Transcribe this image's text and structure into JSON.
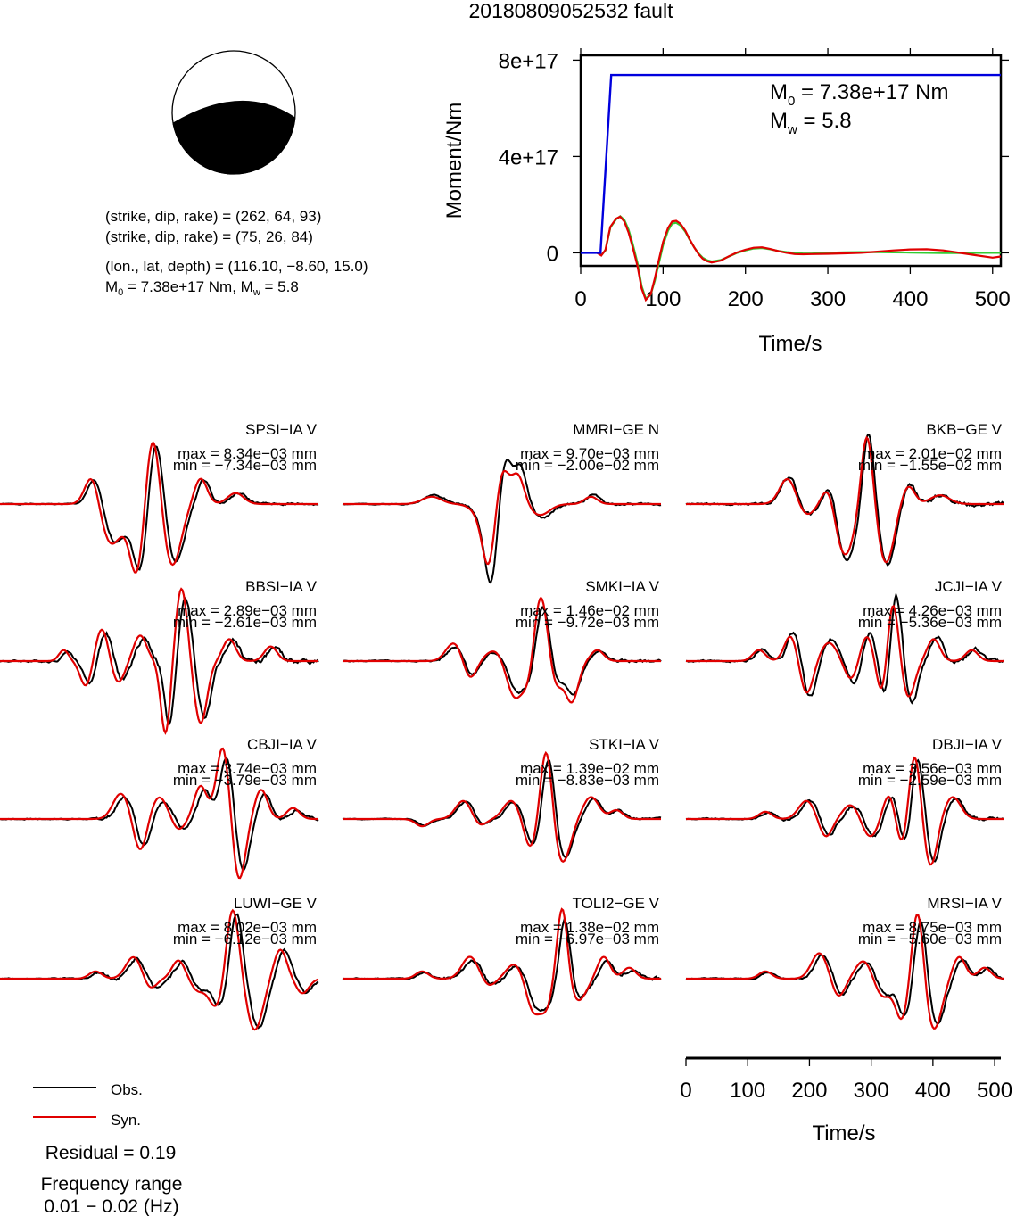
{
  "title": "20180809052532 fault",
  "colors": {
    "obs": "#000000",
    "syn": "#e00000",
    "moment": "#0000dd",
    "stf_green": "#33cc33",
    "beachball_fill": "#000000"
  },
  "info": {
    "line1": "(strike, dip, rake) = (262, 64, 93)",
    "line2": "(strike, dip, rake) = (75, 26, 84)",
    "line3": "(lon., lat, depth) = (116.10, −8.60, 15.0)",
    "m0_prefix": "M",
    "m0_sub": "0",
    "m0_rest": " = 7.38e+17 Nm, M",
    "mw_sub": "w",
    "mw_rest": " = 5.8"
  },
  "moment_annotation": {
    "m0_main": "M",
    "m0_sub": "0",
    "m0_value": " = 7.38e+17 Nm",
    "mw_main": "M",
    "mw_sub": "w",
    "mw_value": " = 5.8"
  },
  "chart_data": [
    {
      "type": "line",
      "name": "moment_function",
      "xlabel": "Time/s",
      "ylabel": "Moment/Nm",
      "xlim": [
        0,
        510
      ],
      "ylim": [
        -5.4e+16,
        8.2e+17
      ],
      "xticks": [
        0,
        100,
        200,
        300,
        400,
        500
      ],
      "yticks": [
        0,
        4e+17,
        8e+17
      ],
      "ytick_labels": [
        "0",
        "4e+17",
        "8e+17"
      ],
      "series": [
        {
          "color": "#0000dd",
          "x": [
            0,
            24,
            37,
            510
          ],
          "y": [
            0,
            0,
            7.38e+17,
            7.38e+17
          ]
        },
        {
          "color": "#33cc33",
          "x": [
            0,
            20,
            25,
            30,
            36,
            43,
            48,
            53,
            58,
            63,
            69,
            74,
            79,
            85,
            90,
            95,
            100,
            106,
            111,
            116,
            121,
            127,
            132,
            138,
            143,
            148,
            153,
            159,
            170,
            180,
            190,
            200,
            210,
            220,
            230,
            240,
            250,
            260,
            270,
            280,
            300,
            320,
            340,
            360,
            380,
            400,
            420,
            440,
            460,
            480,
            500,
            510
          ],
          "y": [
            0,
            0,
            -1e+16,
            1e+16,
            1.05e+17,
            1.39e+17,
            1.52e+17,
            1.37e+17,
            9.7e+16,
            3.9e+16,
            -4.2e+16,
            -1.38e+17,
            -1.9e+17,
            -1.73e+17,
            -1.16e+17,
            -4.2e+16,
            3.3e+16,
            9.2e+16,
            1.21e+17,
            1.25e+17,
            1.14e+17,
            8.8e+16,
            5.6e+16,
            2.2e+16,
            -2000000000000000.0,
            -2e+16,
            -3e+16,
            -3.6e+16,
            -3e+16,
            -1.5e+16,
            0,
            1e+16,
            1.8e+16,
            2e+16,
            1.5e+16,
            8000000000000000.0,
            3000000000000000.0,
            0,
            -3000000000000000.0,
            -3000000000000000.0,
            0,
            2000000000000000.0,
            3000000000000000.0,
            3000000000000000.0,
            2000000000000000.0,
            1000000000000000.0,
            0,
            -1000000000000000.0,
            -1000000000000000.0,
            0,
            0,
            0
          ]
        },
        {
          "color": "#e00000",
          "x": [
            0,
            20,
            25,
            30,
            36,
            43,
            48,
            53,
            58,
            63,
            69,
            74,
            79,
            85,
            90,
            95,
            100,
            106,
            111,
            116,
            121,
            127,
            132,
            138,
            143,
            148,
            153,
            159,
            170,
            180,
            190,
            200,
            210,
            220,
            230,
            240,
            250,
            260,
            270,
            280,
            300,
            320,
            340,
            360,
            380,
            400,
            420,
            440,
            460,
            480,
            500,
            510
          ],
          "y": [
            0,
            0,
            -1.1e+16,
            1.2e+16,
            1.08e+17,
            1.42e+17,
            1.5e+17,
            1.3e+17,
            8.5e+16,
            2.5e+16,
            -5.5e+16,
            -1.48e+17,
            -1.95e+17,
            -1.72e+17,
            -1.06e+17,
            -2.8e+16,
            4.6e+16,
            1.03e+17,
            1.3e+17,
            1.33e+17,
            1.21e+17,
            9.2e+16,
            5.8e+16,
            2.2e+16,
            -5000000000000000.0,
            -2.4e+16,
            -3.4e+16,
            -4e+16,
            -3.2e+16,
            -1.4e+16,
            2000000000000000.0,
            1.3e+16,
            2.1e+16,
            2.3e+16,
            1.6e+16,
            7000000000000000.0,
            0,
            -5000000000000000.0,
            -6000000000000000.0,
            -5000000000000000.0,
            -4000000000000000.0,
            -2000000000000000.0,
            0,
            5000000000000000.0,
            1e+16,
            1.4e+16,
            1.5e+16,
            1e+16,
            0,
            -1e+16,
            -2e+16,
            -1.5e+16
          ]
        }
      ]
    },
    {
      "type": "line",
      "name": "waveform_comparison",
      "xlabel": "Time/s",
      "xlim": [
        0,
        510
      ],
      "xticks": [
        0,
        100,
        200,
        300,
        400,
        500
      ],
      "legend": [
        {
          "label": "Obs.",
          "color": "#000000"
        },
        {
          "label": "Syn.",
          "color": "#e00000"
        }
      ],
      "residual": "Residual = 0.19",
      "freq_title": "Frequency range",
      "freq_value": "0.01 − 0.02 (Hz)",
      "stations": [
        {
          "name": "SPSI−IA V",
          "max": "max = 8.34e−03 mm",
          "min": "min = −7.34e−03 mm",
          "pulses": [
            [
              0.29,
              0.022,
              0.45
            ],
            [
              0.35,
              0.035,
              -0.55
            ],
            [
              0.43,
              0.022,
              -0.95
            ],
            [
              0.48,
              0.022,
              1.0
            ],
            [
              0.54,
              0.028,
              -0.85
            ],
            [
              0.63,
              0.02,
              0.35
            ],
            [
              0.74,
              0.025,
              0.15
            ]
          ],
          "shift": 0.01,
          "obs_gain": 0.95,
          "noise": 0.06,
          "seed": 1
        },
        {
          "name": "MMRI−GE N",
          "max": "max = 9.70e−03 mm",
          "min": "min = −2.00e−02 mm",
          "pulses": [
            [
              0.28,
              0.03,
              0.1
            ],
            [
              0.44,
              0.03,
              -0.15
            ],
            [
              0.46,
              0.02,
              -0.75
            ],
            [
              0.5,
              0.02,
              0.5
            ],
            [
              0.55,
              0.02,
              0.4
            ],
            [
              0.62,
              0.03,
              -0.15
            ],
            [
              0.78,
              0.02,
              0.1
            ]
          ],
          "shift": 0.008,
          "obs_gain": 1.3,
          "noise": 0.05,
          "seed": 2
        },
        {
          "name": "BKB−GE V",
          "max": "max = 2.01e−02 mm",
          "min": "min = −1.55e−02 mm",
          "pulses": [
            [
              0.32,
              0.025,
              0.35
            ],
            [
              0.38,
              0.025,
              -0.15
            ],
            [
              0.45,
              0.02,
              0.3
            ],
            [
              0.5,
              0.03,
              -0.7
            ],
            [
              0.57,
              0.018,
              1.0
            ],
            [
              0.63,
              0.025,
              -0.8
            ],
            [
              0.7,
              0.02,
              0.25
            ],
            [
              0.8,
              0.03,
              0.12
            ]
          ],
          "shift": 0.005,
          "obs_gain": 1.05,
          "noise": 0.1,
          "seed": 3
        },
        {
          "name": "BBSI−IA V",
          "max": "max = 2.89e−03 mm",
          "min": "min = −2.61e−03 mm",
          "pulses": [
            [
              0.2,
              0.015,
              0.15
            ],
            [
              0.27,
              0.018,
              -0.35
            ],
            [
              0.32,
              0.02,
              0.45
            ],
            [
              0.37,
              0.02,
              -0.3
            ],
            [
              0.44,
              0.02,
              0.35
            ],
            [
              0.52,
              0.015,
              -1.0
            ],
            [
              0.57,
              0.018,
              1.0
            ],
            [
              0.63,
              0.02,
              -0.85
            ],
            [
              0.72,
              0.02,
              0.3
            ],
            [
              0.85,
              0.02,
              0.2
            ]
          ],
          "shift": 0.012,
          "obs_gain": 0.9,
          "noise": 0.12,
          "seed": 4
        },
        {
          "name": "SMKI−IA V",
          "max": "max = 1.46e−02 mm",
          "min": "min = −9.72e−03 mm",
          "pulses": [
            [
              0.35,
              0.025,
              0.25
            ],
            [
              0.4,
              0.02,
              -0.25
            ],
            [
              0.48,
              0.03,
              0.15
            ],
            [
              0.54,
              0.025,
              -0.5
            ],
            [
              0.59,
              0.02,
              -0.4
            ],
            [
              0.62,
              0.022,
              1.0
            ],
            [
              0.67,
              0.02,
              -0.35
            ],
            [
              0.72,
              0.02,
              -0.55
            ],
            [
              0.8,
              0.02,
              0.15
            ]
          ],
          "shift": 0.006,
          "obs_gain": 0.85,
          "noise": 0.07,
          "seed": 5
        },
        {
          "name": "JCJI−IA V",
          "max": "max = 4.26e−03 mm",
          "min": "min = −5.36e−03 mm",
          "pulses": [
            [
              0.23,
              0.02,
              0.15
            ],
            [
              0.33,
              0.02,
              0.35
            ],
            [
              0.38,
              0.02,
              -0.45
            ],
            [
              0.45,
              0.025,
              0.25
            ],
            [
              0.52,
              0.02,
              -0.25
            ],
            [
              0.57,
              0.02,
              0.35
            ],
            [
              0.62,
              0.018,
              -0.55
            ],
            [
              0.65,
              0.018,
              0.9
            ],
            [
              0.7,
              0.02,
              -0.5
            ],
            [
              0.78,
              0.02,
              0.3
            ],
            [
              0.9,
              0.02,
              0.15
            ]
          ],
          "shift": 0.01,
          "obs_gain": 1.15,
          "noise": 0.1,
          "seed": 6
        },
        {
          "name": "CBJI−IA V",
          "max": "max = 3.74e−03 mm",
          "min": "min = −3.79e−03 mm",
          "pulses": [
            [
              0.38,
              0.025,
              0.35
            ],
            [
              0.44,
              0.02,
              -0.45
            ],
            [
              0.5,
              0.025,
              0.3
            ],
            [
              0.56,
              0.02,
              -0.15
            ],
            [
              0.63,
              0.02,
              0.45
            ],
            [
              0.7,
              0.02,
              1.0
            ],
            [
              0.75,
              0.02,
              -0.85
            ],
            [
              0.82,
              0.02,
              0.4
            ],
            [
              0.92,
              0.02,
              0.15
            ]
          ],
          "shift": 0.012,
          "obs_gain": 0.85,
          "noise": 0.07,
          "seed": 7
        },
        {
          "name": "STKI−IA V",
          "max": "max = 1.39e−02 mm",
          "min": "min = −8.83e−03 mm",
          "pulses": [
            [
              0.25,
              0.02,
              -0.1
            ],
            [
              0.38,
              0.025,
              0.25
            ],
            [
              0.43,
              0.02,
              -0.1
            ],
            [
              0.53,
              0.025,
              0.25
            ],
            [
              0.59,
              0.02,
              -0.4
            ],
            [
              0.64,
              0.018,
              1.0
            ],
            [
              0.69,
              0.025,
              -0.6
            ],
            [
              0.78,
              0.025,
              0.3
            ],
            [
              0.86,
              0.02,
              0.12
            ]
          ],
          "shift": 0.008,
          "obs_gain": 0.9,
          "noise": 0.05,
          "seed": 8
        },
        {
          "name": "DBJI−IA V",
          "max": "max = 3.56e−03 mm",
          "min": "min = −2.59e−03 mm",
          "pulses": [
            [
              0.25,
              0.02,
              0.1
            ],
            [
              0.38,
              0.025,
              0.25
            ],
            [
              0.44,
              0.02,
              -0.25
            ],
            [
              0.52,
              0.025,
              0.2
            ],
            [
              0.58,
              0.025,
              -0.25
            ],
            [
              0.64,
              0.02,
              0.35
            ],
            [
              0.68,
              0.018,
              -0.4
            ],
            [
              0.72,
              0.018,
              0.9
            ],
            [
              0.77,
              0.02,
              -0.65
            ],
            [
              0.84,
              0.025,
              0.3
            ]
          ],
          "shift": 0.01,
          "obs_gain": 0.95,
          "noise": 0.08,
          "seed": 9
        },
        {
          "name": "LUWI−GE V",
          "max": "max = 8.02e−03 mm",
          "min": "min = −6.12e−03 mm",
          "pulses": [
            [
              0.3,
              0.02,
              0.1
            ],
            [
              0.42,
              0.025,
              0.3
            ],
            [
              0.47,
              0.02,
              -0.15
            ],
            [
              0.56,
              0.02,
              0.25
            ],
            [
              0.62,
              0.02,
              -0.15
            ],
            [
              0.68,
              0.025,
              -0.4
            ],
            [
              0.73,
              0.02,
              1.0
            ],
            [
              0.8,
              0.025,
              -0.7
            ],
            [
              0.88,
              0.02,
              0.4
            ],
            [
              0.95,
              0.02,
              -0.2
            ]
          ],
          "shift": 0.012,
          "obs_gain": 0.95,
          "noise": 0.08,
          "seed": 10
        },
        {
          "name": "TOLI2−GE V",
          "max": "max = 1.38e−02 mm",
          "min": "min = −6.97e−03 mm",
          "pulses": [
            [
              0.25,
              0.02,
              0.1
            ],
            [
              0.4,
              0.025,
              0.3
            ],
            [
              0.46,
              0.02,
              -0.1
            ],
            [
              0.54,
              0.025,
              0.2
            ],
            [
              0.6,
              0.022,
              -0.45
            ],
            [
              0.64,
              0.018,
              -0.35
            ],
            [
              0.69,
              0.016,
              1.0
            ],
            [
              0.74,
              0.025,
              -0.3
            ],
            [
              0.82,
              0.02,
              0.3
            ],
            [
              0.9,
              0.02,
              0.15
            ]
          ],
          "shift": 0.008,
          "obs_gain": 0.85,
          "noise": 0.08,
          "seed": 11
        },
        {
          "name": "MRSI−IA V",
          "max": "max = 8.75e−03 mm",
          "min": "min = −5.60e−03 mm",
          "pulses": [
            [
              0.25,
              0.02,
              0.1
            ],
            [
              0.42,
              0.025,
              0.35
            ],
            [
              0.48,
              0.02,
              -0.25
            ],
            [
              0.56,
              0.025,
              0.25
            ],
            [
              0.62,
              0.025,
              -0.25
            ],
            [
              0.68,
              0.02,
              -0.55
            ],
            [
              0.73,
              0.018,
              1.0
            ],
            [
              0.78,
              0.025,
              -0.7
            ],
            [
              0.86,
              0.02,
              0.3
            ],
            [
              0.94,
              0.02,
              0.15
            ]
          ],
          "shift": 0.01,
          "obs_gain": 0.9,
          "noise": 0.07,
          "seed": 12
        }
      ]
    }
  ]
}
